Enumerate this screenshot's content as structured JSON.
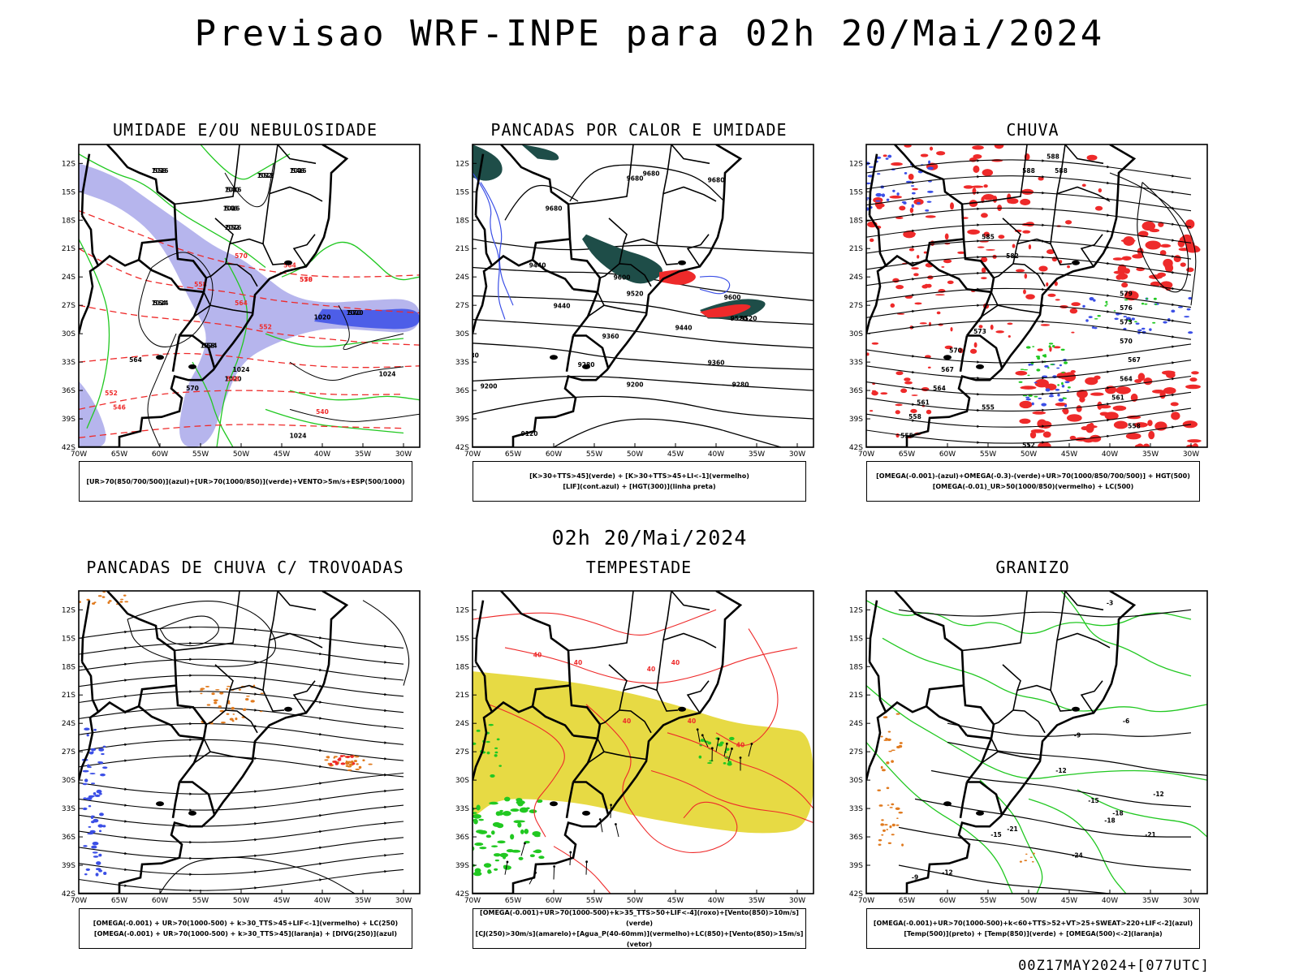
{
  "header": {
    "title": "Previsao WRF-INPE  para 02h 20/Mai/2024"
  },
  "mid_time": "02h 20/Mai/2024",
  "footer": "00Z17MAY2024+[077UTC]",
  "axes": {
    "lat_labels": [
      "12S",
      "15S",
      "18S",
      "21S",
      "24S",
      "27S",
      "30S",
      "33S",
      "36S",
      "39S",
      "42S"
    ],
    "lon_labels": [
      "70W",
      "65W",
      "60W",
      "55W",
      "50W",
      "45W",
      "40W",
      "35W",
      "30W"
    ]
  },
  "colors": {
    "blue": "#3b4fe6",
    "lavender": "#a9a8ea",
    "green": "#21c821",
    "red": "#ee2a2a",
    "darkteal": "#1e4d48",
    "yellow": "#e6d83a",
    "orange": "#e07a1e"
  },
  "panels": [
    {
      "title": "UMIDADE E/OU NEBULOSIDADE",
      "legend": [
        "[UR>70(850/700/500)](azul)+[UR>70(1000/850)](verde)+VENTO>5m/s+ESP(500/1000)"
      ],
      "contour_labels": [
        "1016",
        "1012",
        "1016",
        "1016",
        "1016",
        "1016",
        "1020",
        "1024",
        "1024",
        "1024",
        "1020",
        "1020",
        "1024",
        "1024",
        "570",
        "564",
        "558",
        "552",
        "546",
        "540",
        "546",
        "552",
        "570",
        "564",
        "558"
      ]
    },
    {
      "title": "PANCADAS POR CALOR E UMIDADE",
      "legend": [
        "[K>30+TTS>45](verde) + [K>30+TTS>45+LI<-1](vermelho)",
        "[LIF](cont.azul) + [HGT(300)](linha preta)"
      ],
      "contour_labels": [
        "9680",
        "9680",
        "9680",
        "9680",
        "9600",
        "9520",
        "9440",
        "9600",
        "9520",
        "9440",
        "9360",
        "9280",
        "9360",
        "9280",
        "9200",
        "9200",
        "9120",
        "9520",
        "9440",
        "280"
      ]
    },
    {
      "title": "CHUVA",
      "legend": [
        "[OMEGA(-0.001)-(azul)+OMEGA(-0.3)-(verde)+UR>70(1000/850/700/500)] + HGT(500)",
        "[OMEGA(-0.01)_UR>50(1000/850)(vermelho) + LC(500)"
      ],
      "contour_labels": [
        "588",
        "588",
        "588",
        "585",
        "582",
        "579",
        "576",
        "573",
        "570",
        "567",
        "564",
        "561",
        "558",
        "555",
        "552",
        "573",
        "570",
        "567",
        "564",
        "561",
        "558",
        "555"
      ]
    },
    {
      "title": "PANCADAS DE CHUVA C/ TROVOADAS",
      "legend": [
        "[OMEGA(-0.001) + UR>70(1000-500) + k>30_TTS>45+LIF<-1](vermelho) + LC(250)",
        "[OMEGA(-0.001) + UR>70(1000-500) + k>30_TTS>45](laranja) + [DIVG(250)](azul)"
      ],
      "contour_labels": []
    },
    {
      "title": "TEMPESTADE",
      "legend": [
        "[OMEGA(-0.001)+UR>70(1000-500)+k>35_TTS>50+LIF<-4](roxo)+[Vento(850)>10m/s](verde)",
        "[CJ(250)>30m/s](amarelo)+[Agua_P(40-60mm)](vermelho)+LC(850)+[Vento(850)>15m/s](vetor)"
      ],
      "contour_labels": [
        "40",
        "40",
        "40",
        "40",
        "40",
        "40",
        "40"
      ]
    },
    {
      "title": "GRANIZO",
      "legend": [
        "[OMEGA(-0.001)+UR>70(1000-500)+k<60+TTS>52+VT>25+SWEAT>220+LIF<-2](azul)",
        "[Temp(500)](preto) + [Temp(850)](verde) + [OMEGA(500)<-2](laranja)"
      ],
      "contour_labels": [
        "-3",
        "-6",
        "-9",
        "-12",
        "-12",
        "-15",
        "-18",
        "-21",
        "-18",
        "-15",
        "-24",
        "-21",
        "-12",
        "-9"
      ]
    }
  ],
  "chart_data": [
    {
      "type": "contour-map",
      "title": "UMIDADE E/OU NEBULOSIDADE",
      "xlim": [
        -70,
        -28
      ],
      "ylim": [
        -42,
        -10
      ],
      "xlabel": "",
      "ylabel": "",
      "fields": [
        "UR>70 850/700/500 (azul)",
        "UR>70 1000/850 (verde)",
        "VENTO>5m/s",
        "ESP 500/1000 (vermelho tracejado)",
        "PNM (preto)"
      ]
    },
    {
      "type": "contour-map",
      "title": "PANCADAS POR CALOR E UMIDADE",
      "xlim": [
        -70,
        -28
      ],
      "ylim": [
        -42,
        -10
      ],
      "fields": [
        "K>30+TTS>45 (verde)",
        "K>30+TTS>45+LI<-1 (vermelho)",
        "LIF (azul)",
        "HGT 300 (preto)"
      ]
    },
    {
      "type": "contour-map",
      "title": "CHUVA",
      "xlim": [
        -70,
        -28
      ],
      "ylim": [
        -42,
        -10
      ],
      "fields": [
        "OMEGA<-0.001 (azul)",
        "OMEGA<-0.3 (verde)",
        "OMEGA<-0.01 UR>50 (vermelho)",
        "HGT 500",
        "LC 500"
      ]
    },
    {
      "type": "streamline-map",
      "title": "PANCADAS DE CHUVA C/ TROVOADAS",
      "xlim": [
        -70,
        -28
      ],
      "ylim": [
        -42,
        -10
      ],
      "fields": [
        "vermelho",
        "laranja",
        "DIVG 250 (azul)",
        "LC 250"
      ]
    },
    {
      "type": "streamline-map",
      "title": "TEMPESTADE",
      "xlim": [
        -70,
        -28
      ],
      "ylim": [
        -42,
        -10
      ],
      "fields": [
        "roxo",
        "Vento 850>10m/s (verde)",
        "CJ 250>30m/s (amarelo)",
        "Agua_P 40-60mm (vermelho)",
        "LC 850",
        "Vento 850>15m/s (vetor)"
      ]
    },
    {
      "type": "contour-map",
      "title": "GRANIZO",
      "xlim": [
        -70,
        -28
      ],
      "ylim": [
        -42,
        -10
      ],
      "fields": [
        "azul",
        "Temp 500 (preto)",
        "Temp 850 (verde)",
        "OMEGA 500<-2 (laranja)"
      ]
    }
  ]
}
